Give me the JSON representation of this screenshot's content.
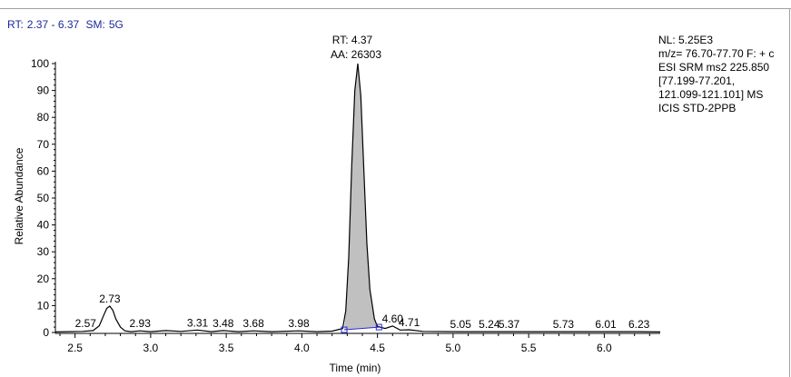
{
  "header": {
    "rt_label": "RT:",
    "rt_range": "2.37 - 6.37",
    "sm_label": "SM:",
    "sm_value": "5G"
  },
  "info_panel": {
    "lines": [
      "NL: 5.25E3",
      "m/z= 76.70-77.70 F: + c",
      "ESI SRM ms2 225.850",
      "[77.199-77.201,",
      "121.099-121.101]  MS",
      "ICIS STD-2PPB"
    ]
  },
  "colors": {
    "trace": "#000000",
    "peak_fill": "#c0c0c0",
    "baseline": "#2a2adc",
    "header_text": "#1a2a9a"
  },
  "chart_data": {
    "type": "line",
    "title": "",
    "xlabel": "Time (min)",
    "ylabel": "Relative Abundance",
    "xlim": [
      2.37,
      6.37
    ],
    "ylim": [
      0,
      100
    ],
    "x_ticks": [
      2.5,
      3.0,
      3.5,
      4.0,
      4.5,
      5.0,
      5.5,
      6.0
    ],
    "x_tick_labels": [
      "2.5",
      "3.0",
      "3.5",
      "4.0",
      "4.5",
      "5.0",
      "5.5",
      "6.0"
    ],
    "y_ticks": [
      0,
      10,
      20,
      30,
      40,
      50,
      60,
      70,
      80,
      90,
      100
    ],
    "y_tick_labels": [
      "0",
      "10",
      "20",
      "30",
      "40",
      "50",
      "60",
      "70",
      "80",
      "90",
      "100"
    ],
    "grid": false,
    "series": [
      {
        "x": [
          2.37,
          2.45,
          2.55,
          2.62,
          2.66,
          2.69,
          2.71,
          2.73,
          2.75,
          2.77,
          2.8,
          2.83,
          2.87,
          2.93,
          3.0,
          3.1,
          3.2,
          3.31,
          3.4,
          3.48,
          3.58,
          3.68,
          3.8,
          3.98,
          4.1,
          4.2,
          4.27,
          4.29,
          4.31,
          4.33,
          4.35,
          4.37,
          4.39,
          4.41,
          4.43,
          4.45,
          4.48,
          4.5,
          4.55,
          4.6,
          4.65,
          4.71,
          4.8,
          5.05,
          5.24,
          5.37,
          5.73,
          6.01,
          6.23,
          6.37
        ],
        "y": [
          0.2,
          0.3,
          0.4,
          0.7,
          2.5,
          6.5,
          9.0,
          9.8,
          8.2,
          5.0,
          2.0,
          0.6,
          0.3,
          0.6,
          0.3,
          0.7,
          0.4,
          0.9,
          0.3,
          0.7,
          0.3,
          0.6,
          0.3,
          0.6,
          0.3,
          0.5,
          1.5,
          8.0,
          28.0,
          62.0,
          90.0,
          100.0,
          88.0,
          60.0,
          33.0,
          16.0,
          5.0,
          2.3,
          1.5,
          2.4,
          0.9,
          1.0,
          0.4,
          0.3,
          0.3,
          0.3,
          0.3,
          0.3,
          0.3,
          0.2
        ]
      }
    ],
    "shaded_peak": {
      "x_start": 4.28,
      "x_end": 4.51,
      "baseline_start_y": 1.0,
      "baseline_end_y": 2.0
    },
    "peak_annotation": {
      "rt": "RT: 4.37",
      "area": "AA: 26303",
      "x": 4.37,
      "y": 100
    },
    "peak_labels": [
      {
        "label": "2.57",
        "x": 2.57,
        "y": 0.6
      },
      {
        "label": "2.73",
        "x": 2.73,
        "y": 9.8
      },
      {
        "label": "2.93",
        "x": 2.93,
        "y": 0.6
      },
      {
        "label": "3.31",
        "x": 3.31,
        "y": 0.9
      },
      {
        "label": "3.48",
        "x": 3.48,
        "y": 0.7
      },
      {
        "label": "3.68",
        "x": 3.68,
        "y": 0.6
      },
      {
        "label": "3.98",
        "x": 3.98,
        "y": 0.6
      },
      {
        "label": "4.60",
        "x": 4.6,
        "y": 2.4
      },
      {
        "label": "4.71",
        "x": 4.71,
        "y": 1.0
      },
      {
        "label": "5.05",
        "x": 5.05,
        "y": 0.3
      },
      {
        "label": "5.24",
        "x": 5.24,
        "y": 0.3
      },
      {
        "label": "5.37",
        "x": 5.37,
        "y": 0.3
      },
      {
        "label": "5.73",
        "x": 5.73,
        "y": 0.3
      },
      {
        "label": "6.01",
        "x": 6.01,
        "y": 0.3
      },
      {
        "label": "6.23",
        "x": 6.23,
        "y": 0.3
      }
    ]
  }
}
